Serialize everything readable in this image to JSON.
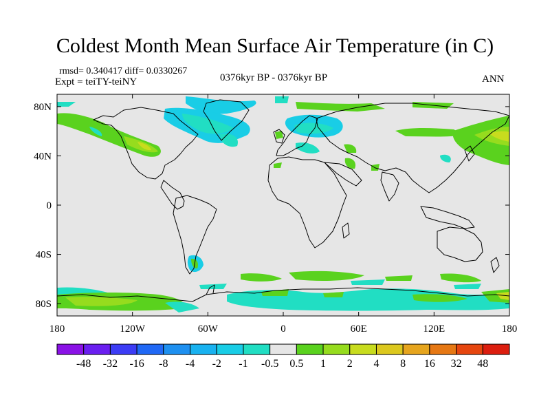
{
  "title": "Coldest Month Mean Surface Air Temperature (in C)",
  "stats": "rmsd= 0.340417 diff= 0.0330267",
  "expt": "Expt = teiTY-teiNY",
  "period": "0376kyr BP - 0376kyr BP",
  "season": "ANN",
  "map": {
    "lon_ticks": [
      "180",
      "120W",
      "60W",
      "0",
      "60E",
      "120E",
      "180"
    ],
    "lat_ticks": [
      "80N",
      "40N",
      "0",
      "40S",
      "80S"
    ],
    "lon_values": [
      -180,
      -120,
      -60,
      0,
      60,
      120,
      180
    ],
    "lat_values": [
      80,
      40,
      0,
      -40,
      -80
    ]
  },
  "colorbar": {
    "labels": [
      "-48",
      "-32",
      "-16",
      "-8",
      "-4",
      "-2",
      "-1",
      "-0.5",
      "0.5",
      "1",
      "2",
      "4",
      "8",
      "16",
      "32",
      "48"
    ],
    "colors": [
      "#8a12e6",
      "#6a1ff0",
      "#3c3cf5",
      "#2068f5",
      "#1e90f0",
      "#19b2f0",
      "#19cde6",
      "#21dec3",
      "#e6e6e6",
      "#5ad21e",
      "#96dc1e",
      "#c8dc1e",
      "#dcc81e",
      "#e6a51e",
      "#e67814",
      "#e6460f",
      "#dc1e0f"
    ]
  },
  "field": {
    "background": "#e6e6e6",
    "negative_colors": [
      "#21dec3",
      "#19cde6"
    ],
    "positive_colors": [
      "#5ad21e",
      "#96dc1e",
      "#c8dc1e"
    ]
  }
}
